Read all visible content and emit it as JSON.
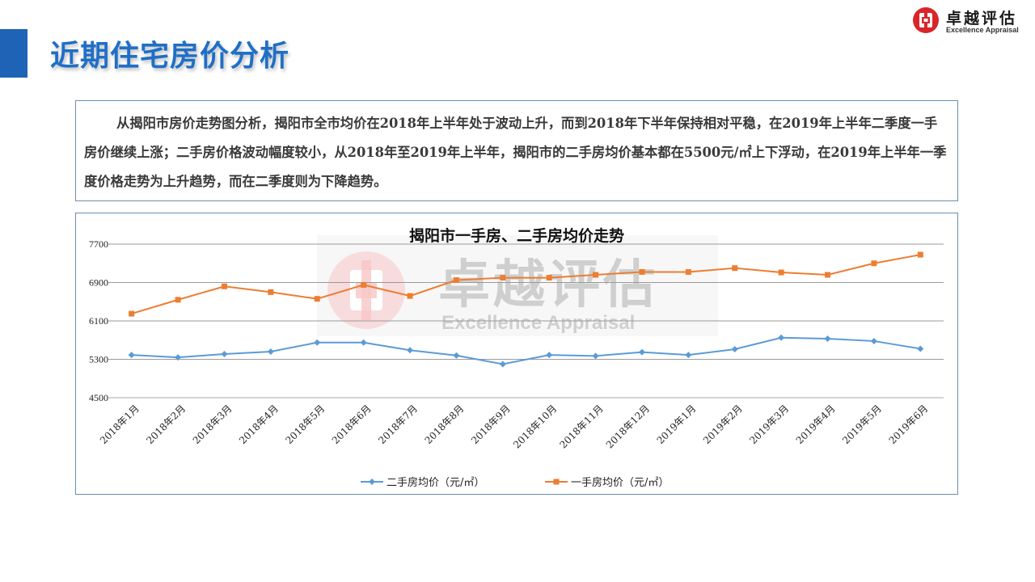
{
  "page": {
    "title": "近期住宅房价分析",
    "description": "从揭阳市房价走势图分析，揭阳市全市均价在2018年上半年处于波动上升，而到2018年下半年保持相对平稳，在2019年上半年二季度一手房价继续上涨；二手房价格波动幅度较小，从2018年至2019年上半年，揭阳市的二手房均价基本都在5500元/㎡上下浮动，在2019年上半年一季度价格走势为上升趋势，而在二季度则为下降趋势。"
  },
  "logo": {
    "name_cn": "卓越评估",
    "name_en": "Excellence Appraisal",
    "color": "#d9252a"
  },
  "watermark": {
    "name_cn": "卓越评估",
    "name_en": "Excellence Appraisal"
  },
  "chart_data": {
    "type": "line",
    "title": "揭阳市一手房、二手房均价走势",
    "categories": [
      "2018年1月",
      "2018年2月",
      "2018年3月",
      "2018年4月",
      "2018年5月",
      "2018年6月",
      "2018年7月",
      "2018年8月",
      "2018年9月",
      "2018年10月",
      "2018年11月",
      "2018年12月",
      "2019年1月",
      "2019年2月",
      "2019年3月",
      "2019年4月",
      "2019年5月",
      "2019年6月"
    ],
    "series": [
      {
        "name": "二手房均价（元/㎡）",
        "color": "#5b9bd5",
        "marker": "diamond",
        "values": [
          5390,
          5340,
          5410,
          5460,
          5650,
          5650,
          5490,
          5380,
          5200,
          5390,
          5370,
          5450,
          5390,
          5510,
          5750,
          5730,
          5680,
          5520
        ]
      },
      {
        "name": "一手房均价（元/㎡）",
        "color": "#ed7d31",
        "marker": "square",
        "values": [
          6250,
          6540,
          6820,
          6700,
          6560,
          6850,
          6620,
          6950,
          7000,
          7000,
          7060,
          7120,
          7120,
          7200,
          7110,
          7060,
          7300,
          7480
        ]
      }
    ],
    "ylim": [
      4500,
      7700
    ],
    "yticks": [
      4500,
      5300,
      6100,
      6900,
      7700
    ],
    "grid": true,
    "legend": "bottom"
  }
}
